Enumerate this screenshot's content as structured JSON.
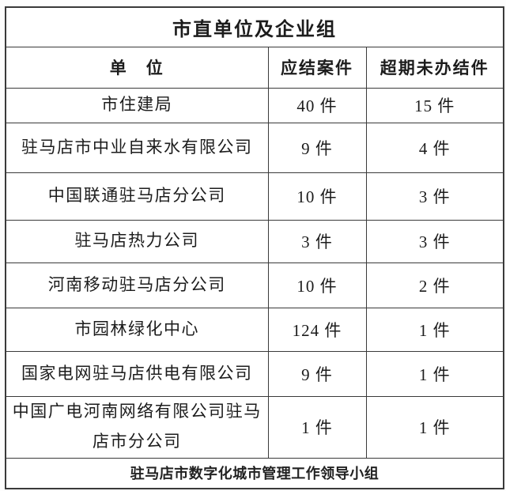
{
  "table": {
    "title": "市直单位及企业组",
    "columns": {
      "unit": "单　位",
      "due": "应结案件",
      "overdue": "超期未办结件"
    },
    "rows": [
      {
        "unit": "市住建局",
        "due": "40 件",
        "overdue": "15 件"
      },
      {
        "unit": "驻马店市中业自来水有限公司",
        "due": "9 件",
        "overdue": "4 件"
      },
      {
        "unit": "中国联通驻马店分公司",
        "due": "10 件",
        "overdue": "3 件"
      },
      {
        "unit": "驻马店热力公司",
        "due": "3 件",
        "overdue": "3 件"
      },
      {
        "unit": "河南移动驻马店分公司",
        "due": "10 件",
        "overdue": "2 件"
      },
      {
        "unit": "市园林绿化中心",
        "due": "124 件",
        "overdue": "1 件"
      },
      {
        "unit": "国家电网驻马店供电有限公司",
        "due": "9 件",
        "overdue": "1 件"
      },
      {
        "unit": "中国广电河南网络有限公司驻马店市分公司",
        "due": "1 件",
        "overdue": "1 件"
      }
    ],
    "footer": "驻马店市数字化城市管理工作领导小组"
  },
  "colors": {
    "border": "#3a3a3a",
    "text": "#1c1c1c",
    "background": "#ffffff"
  }
}
